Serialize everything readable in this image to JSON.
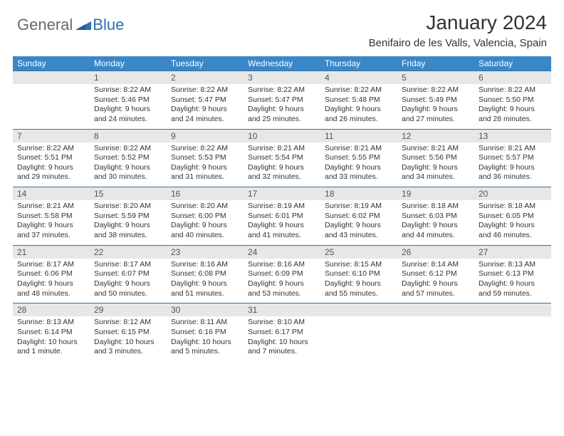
{
  "logo": {
    "text1": "General",
    "text2": "Blue"
  },
  "title": "January 2024",
  "location": "Benifairo de les Valls, Valencia, Spain",
  "colors": {
    "header_bg": "#3a87c8",
    "header_text": "#ffffff",
    "daynum_bg": "#e7e7e7",
    "row_border": "#3a71a0",
    "logo_gray": "#6a6a6a",
    "logo_blue": "#2f6fb0"
  },
  "day_headers": [
    "Sunday",
    "Monday",
    "Tuesday",
    "Wednesday",
    "Thursday",
    "Friday",
    "Saturday"
  ],
  "weeks": [
    {
      "nums": [
        "",
        "1",
        "2",
        "3",
        "4",
        "5",
        "6"
      ],
      "cells": [
        {
          "sunrise": "",
          "sunset": "",
          "daylight": ""
        },
        {
          "sunrise": "Sunrise: 8:22 AM",
          "sunset": "Sunset: 5:46 PM",
          "daylight": "Daylight: 9 hours and 24 minutes."
        },
        {
          "sunrise": "Sunrise: 8:22 AM",
          "sunset": "Sunset: 5:47 PM",
          "daylight": "Daylight: 9 hours and 24 minutes."
        },
        {
          "sunrise": "Sunrise: 8:22 AM",
          "sunset": "Sunset: 5:47 PM",
          "daylight": "Daylight: 9 hours and 25 minutes."
        },
        {
          "sunrise": "Sunrise: 8:22 AM",
          "sunset": "Sunset: 5:48 PM",
          "daylight": "Daylight: 9 hours and 26 minutes."
        },
        {
          "sunrise": "Sunrise: 8:22 AM",
          "sunset": "Sunset: 5:49 PM",
          "daylight": "Daylight: 9 hours and 27 minutes."
        },
        {
          "sunrise": "Sunrise: 8:22 AM",
          "sunset": "Sunset: 5:50 PM",
          "daylight": "Daylight: 9 hours and 28 minutes."
        }
      ]
    },
    {
      "nums": [
        "7",
        "8",
        "9",
        "10",
        "11",
        "12",
        "13"
      ],
      "cells": [
        {
          "sunrise": "Sunrise: 8:22 AM",
          "sunset": "Sunset: 5:51 PM",
          "daylight": "Daylight: 9 hours and 29 minutes."
        },
        {
          "sunrise": "Sunrise: 8:22 AM",
          "sunset": "Sunset: 5:52 PM",
          "daylight": "Daylight: 9 hours and 30 minutes."
        },
        {
          "sunrise": "Sunrise: 8:22 AM",
          "sunset": "Sunset: 5:53 PM",
          "daylight": "Daylight: 9 hours and 31 minutes."
        },
        {
          "sunrise": "Sunrise: 8:21 AM",
          "sunset": "Sunset: 5:54 PM",
          "daylight": "Daylight: 9 hours and 32 minutes."
        },
        {
          "sunrise": "Sunrise: 8:21 AM",
          "sunset": "Sunset: 5:55 PM",
          "daylight": "Daylight: 9 hours and 33 minutes."
        },
        {
          "sunrise": "Sunrise: 8:21 AM",
          "sunset": "Sunset: 5:56 PM",
          "daylight": "Daylight: 9 hours and 34 minutes."
        },
        {
          "sunrise": "Sunrise: 8:21 AM",
          "sunset": "Sunset: 5:57 PM",
          "daylight": "Daylight: 9 hours and 36 minutes."
        }
      ]
    },
    {
      "nums": [
        "14",
        "15",
        "16",
        "17",
        "18",
        "19",
        "20"
      ],
      "cells": [
        {
          "sunrise": "Sunrise: 8:21 AM",
          "sunset": "Sunset: 5:58 PM",
          "daylight": "Daylight: 9 hours and 37 minutes."
        },
        {
          "sunrise": "Sunrise: 8:20 AM",
          "sunset": "Sunset: 5:59 PM",
          "daylight": "Daylight: 9 hours and 38 minutes."
        },
        {
          "sunrise": "Sunrise: 8:20 AM",
          "sunset": "Sunset: 6:00 PM",
          "daylight": "Daylight: 9 hours and 40 minutes."
        },
        {
          "sunrise": "Sunrise: 8:19 AM",
          "sunset": "Sunset: 6:01 PM",
          "daylight": "Daylight: 9 hours and 41 minutes."
        },
        {
          "sunrise": "Sunrise: 8:19 AM",
          "sunset": "Sunset: 6:02 PM",
          "daylight": "Daylight: 9 hours and 43 minutes."
        },
        {
          "sunrise": "Sunrise: 8:18 AM",
          "sunset": "Sunset: 6:03 PM",
          "daylight": "Daylight: 9 hours and 44 minutes."
        },
        {
          "sunrise": "Sunrise: 8:18 AM",
          "sunset": "Sunset: 6:05 PM",
          "daylight": "Daylight: 9 hours and 46 minutes."
        }
      ]
    },
    {
      "nums": [
        "21",
        "22",
        "23",
        "24",
        "25",
        "26",
        "27"
      ],
      "cells": [
        {
          "sunrise": "Sunrise: 8:17 AM",
          "sunset": "Sunset: 6:06 PM",
          "daylight": "Daylight: 9 hours and 48 minutes."
        },
        {
          "sunrise": "Sunrise: 8:17 AM",
          "sunset": "Sunset: 6:07 PM",
          "daylight": "Daylight: 9 hours and 50 minutes."
        },
        {
          "sunrise": "Sunrise: 8:16 AM",
          "sunset": "Sunset: 6:08 PM",
          "daylight": "Daylight: 9 hours and 51 minutes."
        },
        {
          "sunrise": "Sunrise: 8:16 AM",
          "sunset": "Sunset: 6:09 PM",
          "daylight": "Daylight: 9 hours and 53 minutes."
        },
        {
          "sunrise": "Sunrise: 8:15 AM",
          "sunset": "Sunset: 6:10 PM",
          "daylight": "Daylight: 9 hours and 55 minutes."
        },
        {
          "sunrise": "Sunrise: 8:14 AM",
          "sunset": "Sunset: 6:12 PM",
          "daylight": "Daylight: 9 hours and 57 minutes."
        },
        {
          "sunrise": "Sunrise: 8:13 AM",
          "sunset": "Sunset: 6:13 PM",
          "daylight": "Daylight: 9 hours and 59 minutes."
        }
      ]
    },
    {
      "nums": [
        "28",
        "29",
        "30",
        "31",
        "",
        "",
        ""
      ],
      "cells": [
        {
          "sunrise": "Sunrise: 8:13 AM",
          "sunset": "Sunset: 6:14 PM",
          "daylight": "Daylight: 10 hours and 1 minute."
        },
        {
          "sunrise": "Sunrise: 8:12 AM",
          "sunset": "Sunset: 6:15 PM",
          "daylight": "Daylight: 10 hours and 3 minutes."
        },
        {
          "sunrise": "Sunrise: 8:11 AM",
          "sunset": "Sunset: 6:16 PM",
          "daylight": "Daylight: 10 hours and 5 minutes."
        },
        {
          "sunrise": "Sunrise: 8:10 AM",
          "sunset": "Sunset: 6:17 PM",
          "daylight": "Daylight: 10 hours and 7 minutes."
        },
        {
          "sunrise": "",
          "sunset": "",
          "daylight": ""
        },
        {
          "sunrise": "",
          "sunset": "",
          "daylight": ""
        },
        {
          "sunrise": "",
          "sunset": "",
          "daylight": ""
        }
      ]
    }
  ]
}
